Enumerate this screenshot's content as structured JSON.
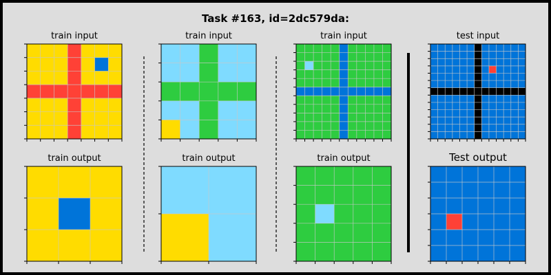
{
  "title": "Task #163, id=2dc579da:",
  "colors": {
    "frame": "#000000",
    "background": "#dddddd",
    "0": "#000000",
    "1": "#0074d9",
    "2": "#ff4136",
    "3": "#2ecc40",
    "4": "#ffdc00",
    "8": "#7fdbff",
    "gridline": "#c8c8c8"
  },
  "panels": [
    {
      "label": "train input",
      "grid": [
        [
          4,
          4,
          4,
          2,
          4,
          4,
          4
        ],
        [
          4,
          4,
          4,
          2,
          4,
          1,
          4
        ],
        [
          4,
          4,
          4,
          2,
          4,
          4,
          4
        ],
        [
          2,
          2,
          2,
          2,
          2,
          2,
          2
        ],
        [
          4,
          4,
          4,
          2,
          4,
          4,
          4
        ],
        [
          4,
          4,
          4,
          2,
          4,
          4,
          4
        ],
        [
          4,
          4,
          4,
          2,
          4,
          4,
          4
        ]
      ]
    },
    {
      "label": "train input",
      "grid": [
        [
          8,
          8,
          3,
          8,
          8
        ],
        [
          8,
          8,
          3,
          8,
          8
        ],
        [
          3,
          3,
          3,
          3,
          3
        ],
        [
          8,
          8,
          3,
          8,
          8
        ],
        [
          4,
          8,
          3,
          8,
          8
        ]
      ]
    },
    {
      "label": "train input",
      "grid": [
        [
          3,
          3,
          3,
          3,
          3,
          1,
          3,
          3,
          3,
          3,
          3
        ],
        [
          3,
          3,
          3,
          3,
          3,
          1,
          3,
          3,
          3,
          3,
          3
        ],
        [
          3,
          8,
          3,
          3,
          3,
          1,
          3,
          3,
          3,
          3,
          3
        ],
        [
          3,
          3,
          3,
          3,
          3,
          1,
          3,
          3,
          3,
          3,
          3
        ],
        [
          3,
          3,
          3,
          3,
          3,
          1,
          3,
          3,
          3,
          3,
          3
        ],
        [
          1,
          1,
          1,
          1,
          1,
          1,
          1,
          1,
          1,
          1,
          1
        ],
        [
          3,
          3,
          3,
          3,
          3,
          1,
          3,
          3,
          3,
          3,
          3
        ],
        [
          3,
          3,
          3,
          3,
          3,
          1,
          3,
          3,
          3,
          3,
          3
        ],
        [
          3,
          3,
          3,
          3,
          3,
          1,
          3,
          3,
          3,
          3,
          3
        ],
        [
          3,
          3,
          3,
          3,
          3,
          1,
          3,
          3,
          3,
          3,
          3
        ],
        [
          3,
          3,
          3,
          3,
          3,
          1,
          3,
          3,
          3,
          3,
          3
        ]
      ]
    },
    {
      "label": "test input",
      "grid": [
        [
          1,
          1,
          1,
          1,
          1,
          1,
          0,
          1,
          1,
          1,
          1,
          1,
          1
        ],
        [
          1,
          1,
          1,
          1,
          1,
          1,
          0,
          1,
          1,
          1,
          1,
          1,
          1
        ],
        [
          1,
          1,
          1,
          1,
          1,
          1,
          0,
          1,
          1,
          1,
          1,
          1,
          1
        ],
        [
          1,
          1,
          1,
          1,
          1,
          1,
          0,
          1,
          2,
          1,
          1,
          1,
          1
        ],
        [
          1,
          1,
          1,
          1,
          1,
          1,
          0,
          1,
          1,
          1,
          1,
          1,
          1
        ],
        [
          1,
          1,
          1,
          1,
          1,
          1,
          0,
          1,
          1,
          1,
          1,
          1,
          1
        ],
        [
          0,
          0,
          0,
          0,
          0,
          0,
          0,
          0,
          0,
          0,
          0,
          0,
          0
        ],
        [
          1,
          1,
          1,
          1,
          1,
          1,
          0,
          1,
          1,
          1,
          1,
          1,
          1
        ],
        [
          1,
          1,
          1,
          1,
          1,
          1,
          0,
          1,
          1,
          1,
          1,
          1,
          1
        ],
        [
          1,
          1,
          1,
          1,
          1,
          1,
          0,
          1,
          1,
          1,
          1,
          1,
          1
        ],
        [
          1,
          1,
          1,
          1,
          1,
          1,
          0,
          1,
          1,
          1,
          1,
          1,
          1
        ],
        [
          1,
          1,
          1,
          1,
          1,
          1,
          0,
          1,
          1,
          1,
          1,
          1,
          1
        ],
        [
          1,
          1,
          1,
          1,
          1,
          1,
          0,
          1,
          1,
          1,
          1,
          1,
          1
        ]
      ]
    },
    {
      "label": "train output",
      "grid": [
        [
          4,
          4,
          4
        ],
        [
          4,
          1,
          4
        ],
        [
          4,
          4,
          4
        ]
      ]
    },
    {
      "label": "train output",
      "grid": [
        [
          8,
          8
        ],
        [
          4,
          8
        ]
      ]
    },
    {
      "label": "train output",
      "grid": [
        [
          3,
          3,
          3,
          3,
          3
        ],
        [
          3,
          3,
          3,
          3,
          3
        ],
        [
          3,
          8,
          3,
          3,
          3
        ],
        [
          3,
          3,
          3,
          3,
          3
        ],
        [
          3,
          3,
          3,
          3,
          3
        ]
      ]
    },
    {
      "label": "Test output",
      "large": true,
      "grid": [
        [
          1,
          1,
          1,
          1,
          1,
          1
        ],
        [
          1,
          1,
          1,
          1,
          1,
          1
        ],
        [
          1,
          1,
          1,
          1,
          1,
          1
        ],
        [
          1,
          2,
          1,
          1,
          1,
          1
        ],
        [
          1,
          1,
          1,
          1,
          1,
          1
        ],
        [
          1,
          1,
          1,
          1,
          1,
          1
        ]
      ]
    }
  ]
}
